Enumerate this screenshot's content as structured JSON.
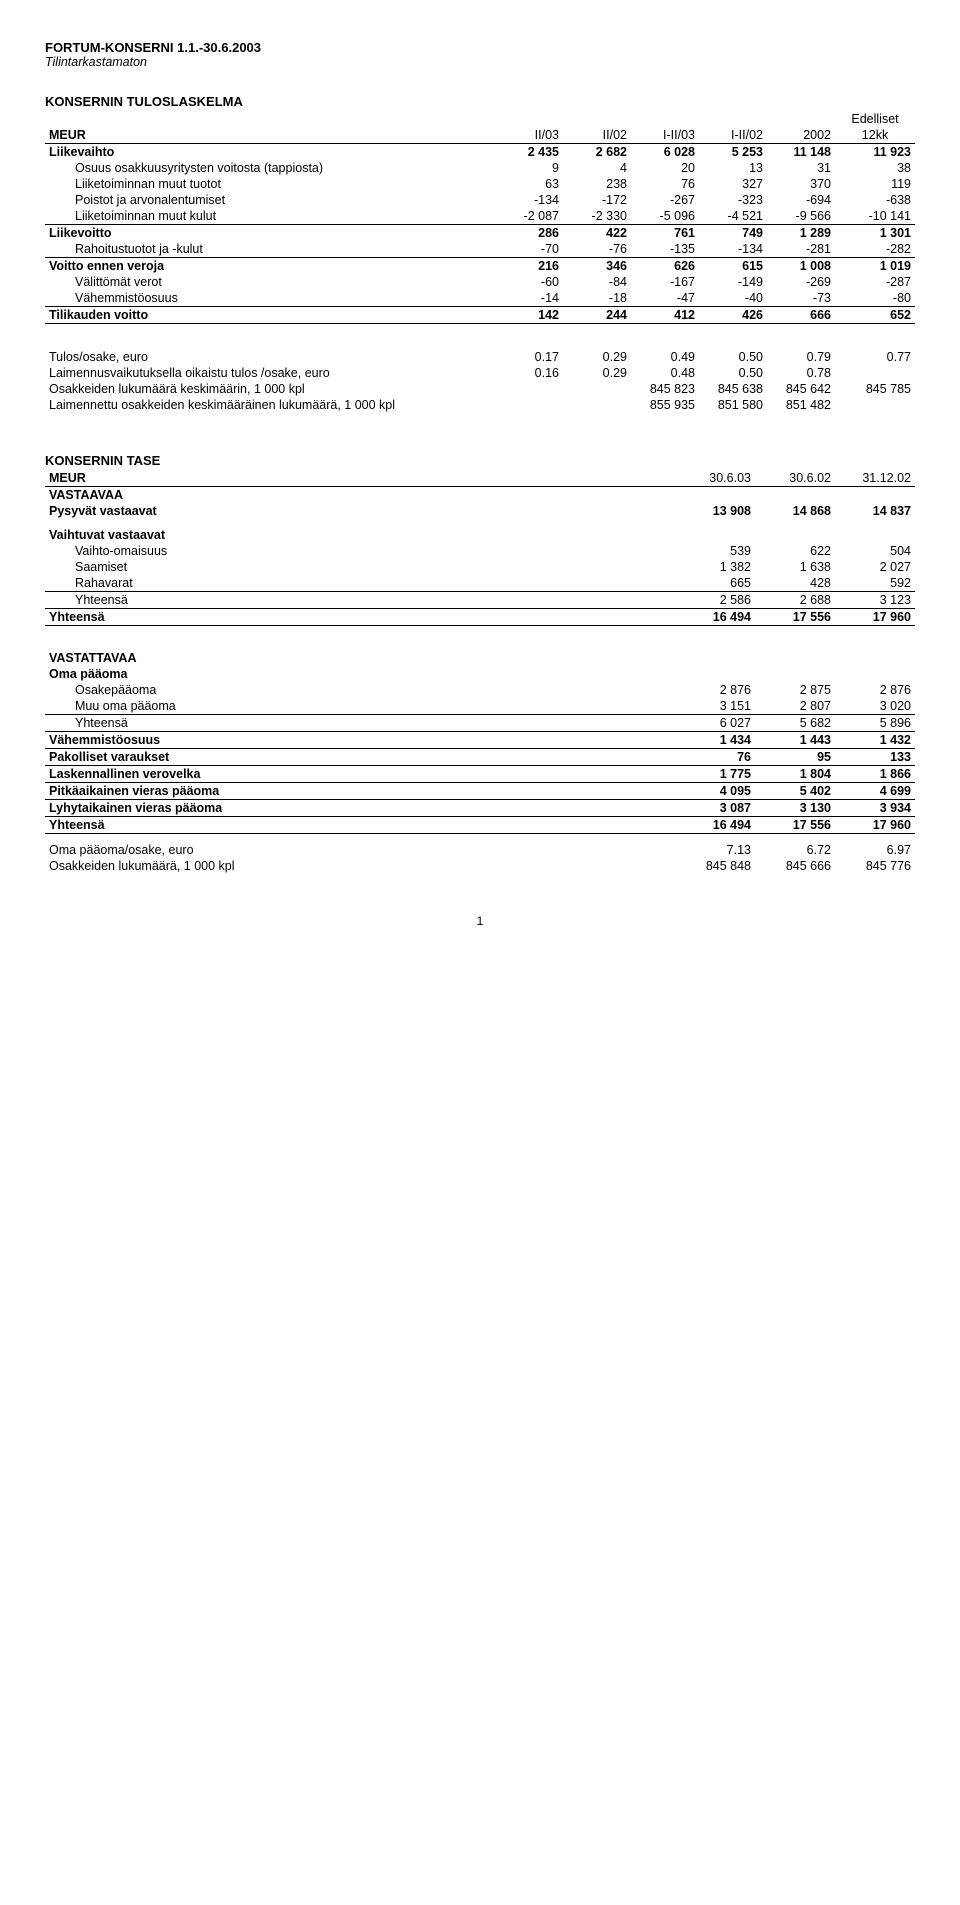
{
  "header": {
    "org": "FORTUM-KONSERNI 1.1.-30.6.2003",
    "sub": "Tilintarkastamaton"
  },
  "income": {
    "title": "KONSERNIN TULOSLASKELMA",
    "meur": "MEUR",
    "col_headers": [
      "II/03",
      "II/02",
      "I-II/03",
      "I-II/02",
      "2002"
    ],
    "col_last_top": "Edelliset",
    "col_last_bot": "12kk",
    "rows": [
      {
        "label": "Liikevaihto",
        "bold": true,
        "v": [
          "2 435",
          "2 682",
          "6 028",
          "5 253",
          "11 148",
          "11 923"
        ]
      },
      {
        "label": "Osuus osakkuusyritysten voitosta (tappiosta)",
        "indent": 1,
        "v": [
          "9",
          "4",
          "20",
          "13",
          "31",
          "38"
        ]
      },
      {
        "label": "Liiketoiminnan muut tuotot",
        "indent": 1,
        "v": [
          "63",
          "238",
          "76",
          "327",
          "370",
          "119"
        ]
      },
      {
        "label": "Poistot ja arvonalentumiset",
        "indent": 1,
        "v": [
          "-134",
          "-172",
          "-267",
          "-323",
          "-694",
          "-638"
        ]
      },
      {
        "label": "Liiketoiminnan muut kulut",
        "indent": 1,
        "ruleBottom": true,
        "v": [
          "-2 087",
          "-2 330",
          "-5 096",
          "-4 521",
          "-9 566",
          "-10 141"
        ]
      },
      {
        "label": "Liikevoitto",
        "bold": true,
        "v": [
          "286",
          "422",
          "761",
          "749",
          "1 289",
          "1 301"
        ]
      },
      {
        "label": "Rahoitustuotot ja -kulut",
        "indent": 1,
        "ruleBottom": true,
        "v": [
          "-70",
          "-76",
          "-135",
          "-134",
          "-281",
          "-282"
        ]
      },
      {
        "label": "Voitto ennen veroja",
        "bold": true,
        "v": [
          "216",
          "346",
          "626",
          "615",
          "1 008",
          "1 019"
        ]
      },
      {
        "label": "Välittömät verot",
        "indent": 1,
        "v": [
          "-60",
          "-84",
          "-167",
          "-149",
          "-269",
          "-287"
        ]
      },
      {
        "label": "Vähemmistöosuus",
        "indent": 1,
        "ruleBottom": true,
        "v": [
          "-14",
          "-18",
          "-47",
          "-40",
          "-73",
          "-80"
        ]
      },
      {
        "label": "Tilikauden voitto",
        "bold": true,
        "ruleBottom": true,
        "v": [
          "142",
          "244",
          "412",
          "426",
          "666",
          "652"
        ]
      }
    ],
    "extras": [
      {
        "label": "Tulos/osake, euro",
        "v": [
          "0.17",
          "0.29",
          "0.49",
          "0.50",
          "0.79",
          "0.77"
        ]
      },
      {
        "label": "Laimennusvaikutuksella oikaistu tulos /osake, euro",
        "v": [
          "0.16",
          "0.29",
          "0.48",
          "0.50",
          "0.78",
          ""
        ]
      },
      {
        "label": "Osakkeiden lukumäärä keskimäärin, 1 000 kpl",
        "v": [
          "",
          "",
          "845 823",
          "845 638",
          "845 642",
          "845 785"
        ]
      },
      {
        "label": "Laimennettu osakkeiden keskimääräinen lukumäärä, 1 000 kpl",
        "v": [
          "",
          "",
          "855 935",
          "851 580",
          "851 482",
          ""
        ]
      }
    ]
  },
  "balance": {
    "title": "KONSERNIN TASE",
    "meur": "MEUR",
    "col_headers": [
      "30.6.03",
      "30.6.02",
      "31.12.02"
    ],
    "assets_title": "VASTAAVAA",
    "assets_rows": [
      {
        "label": "Pysyvät vastaavat",
        "bold": true,
        "v": [
          "13 908",
          "14 868",
          "14 837"
        ]
      },
      {
        "label": "Vaihtuvat vastaavat",
        "bold": true,
        "spacerBefore": true,
        "v": [
          "",
          "",
          ""
        ]
      },
      {
        "label": "Vaihto-omaisuus",
        "indent": 1,
        "v": [
          "539",
          "622",
          "504"
        ]
      },
      {
        "label": "Saamiset",
        "indent": 1,
        "v": [
          "1 382",
          "1 638",
          "2 027"
        ]
      },
      {
        "label": "Rahavarat",
        "indent": 1,
        "ruleBottom": true,
        "v": [
          "665",
          "428",
          "592"
        ]
      },
      {
        "label": "Yhteensä",
        "indent": 1,
        "ruleBottom": true,
        "v": [
          "2 586",
          "2 688",
          "3 123"
        ]
      },
      {
        "label": "Yhteensä",
        "bold": true,
        "ruleBottom": true,
        "v": [
          "16 494",
          "17 556",
          "17 960"
        ]
      }
    ],
    "liab_title": "VASTATTAVAA",
    "liab_rows": [
      {
        "label": "Oma pääoma",
        "bold": true,
        "v": [
          "",
          "",
          ""
        ]
      },
      {
        "label": "Osakepääoma",
        "indent": 1,
        "v": [
          "2 876",
          "2 875",
          "2 876"
        ]
      },
      {
        "label": "Muu oma pääoma",
        "indent": 1,
        "ruleBottom": true,
        "v": [
          "3 151",
          "2 807",
          "3 020"
        ]
      },
      {
        "label": "Yhteensä",
        "indent": 1,
        "ruleBottom": true,
        "v": [
          "6 027",
          "5 682",
          "5 896"
        ]
      },
      {
        "label": "Vähemmistöosuus",
        "bold": true,
        "ruleBottom": true,
        "v": [
          "1 434",
          "1 443",
          "1 432"
        ]
      },
      {
        "label": "Pakolliset varaukset",
        "bold": true,
        "ruleBottom": true,
        "v": [
          "76",
          "95",
          "133"
        ]
      },
      {
        "label": "Laskennallinen verovelka",
        "bold": true,
        "ruleBottom": true,
        "v": [
          "1 775",
          "1 804",
          "1 866"
        ]
      },
      {
        "label": "Pitkäaikainen vieras pääoma",
        "bold": true,
        "ruleBottom": true,
        "v": [
          "4 095",
          "5 402",
          "4 699"
        ]
      },
      {
        "label": "Lyhytaikainen vieras pääoma",
        "bold": true,
        "ruleBottom": true,
        "v": [
          "3 087",
          "3 130",
          "3 934"
        ]
      },
      {
        "label": "Yhteensä",
        "bold": true,
        "ruleBottom": true,
        "v": [
          "16 494",
          "17 556",
          "17 960"
        ]
      }
    ],
    "extras": [
      {
        "label": "Oma pääoma/osake, euro",
        "v": [
          "7.13",
          "6.72",
          "6.97"
        ]
      },
      {
        "label": "Osakkeiden lukumäärä, 1 000 kpl",
        "v": [
          "845 848",
          "845 666",
          "845 776"
        ]
      }
    ]
  },
  "page_number": "1"
}
